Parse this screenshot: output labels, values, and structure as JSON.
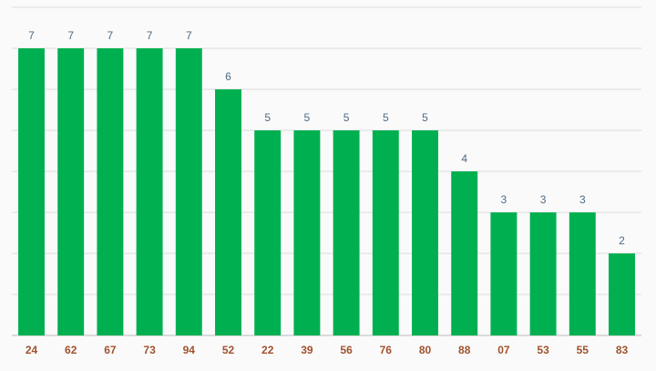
{
  "chart_data": {
    "type": "bar",
    "categories": [
      "24",
      "62",
      "67",
      "73",
      "94",
      "52",
      "22",
      "39",
      "56",
      "76",
      "80",
      "88",
      "07",
      "53",
      "55",
      "83"
    ],
    "values": [
      7,
      7,
      7,
      7,
      7,
      6,
      5,
      5,
      5,
      5,
      5,
      4,
      3,
      3,
      3,
      2
    ],
    "color": "#00b050",
    "ylim": [
      0,
      8
    ],
    "yticks": [
      0,
      1,
      2,
      3,
      4,
      5,
      6,
      7,
      8
    ],
    "grid": true
  }
}
